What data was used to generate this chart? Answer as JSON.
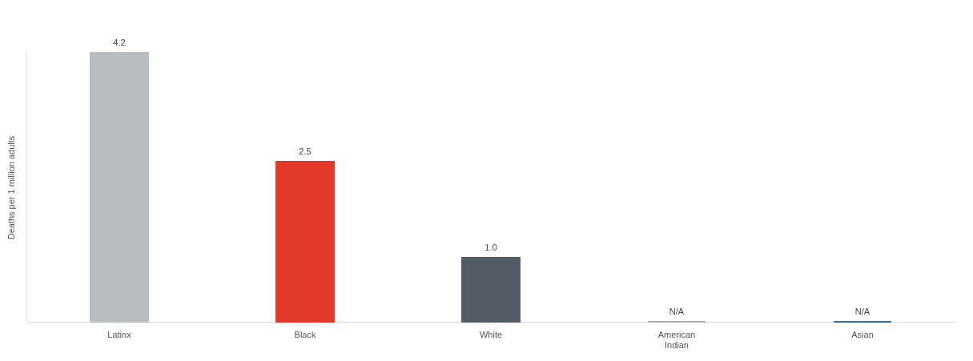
{
  "chart_data": {
    "type": "bar",
    "ylabel": "Deaths per 1 million adults",
    "categories": [
      "Latinx",
      "Black",
      "White",
      "American Indian",
      "Asian"
    ],
    "values": [
      4.2,
      2.5,
      1.0,
      0,
      0
    ],
    "colors": [
      "#b9bdc0",
      "#e2392c",
      "#535b67",
      "#a9adb0",
      "#2f6db5"
    ],
    "value_labels": [
      "4.2",
      "2.5",
      "1.0",
      "N/A",
      "N/A"
    ],
    "grid": false,
    "legend": false
  }
}
